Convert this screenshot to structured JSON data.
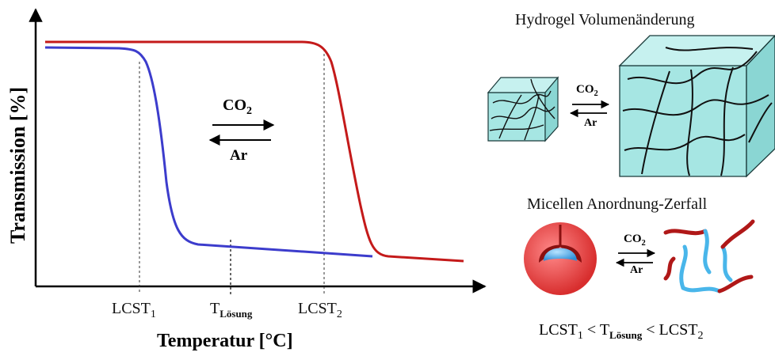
{
  "chart": {
    "y_axis_label": "Transmission [%]",
    "x_axis_label": "Temperatur [°C]",
    "ticks": {
      "lcst1": {
        "main": "LCST",
        "sub": "1"
      },
      "tloesung": {
        "main": "T",
        "sub": "Lösung"
      },
      "lcst2": {
        "main": "LCST",
        "sub": "2"
      }
    },
    "arrows": {
      "forward": "CO2",
      "forward_main": "CO",
      "forward_sub": "2",
      "back": "Ar"
    },
    "colors": {
      "curve1": "#3c3ccc",
      "curve2": "#c41a1a",
      "axis": "#000000"
    }
  },
  "hydrogel": {
    "title": "Hydrogel Volumenänderung",
    "forward_main": "CO",
    "forward_sub": "2",
    "back": "Ar",
    "cube_color": "#9fe3e0"
  },
  "micelle": {
    "title": "Micellen Anordnung-Zerfall",
    "forward_main": "CO",
    "forward_sub": "2",
    "back": "Ar",
    "colors": {
      "shell": "#e83b3b",
      "core": "#4aa8e8",
      "chain_red": "#b01818",
      "chain_blue": "#49b6ea"
    }
  },
  "relation": {
    "a_main": "LCST",
    "a_sub": "1",
    "lt1": " < ",
    "b_main": "T",
    "b_sub": "Lösung",
    "lt2": " < ",
    "c_main": "LCST",
    "c_sub": "2"
  }
}
